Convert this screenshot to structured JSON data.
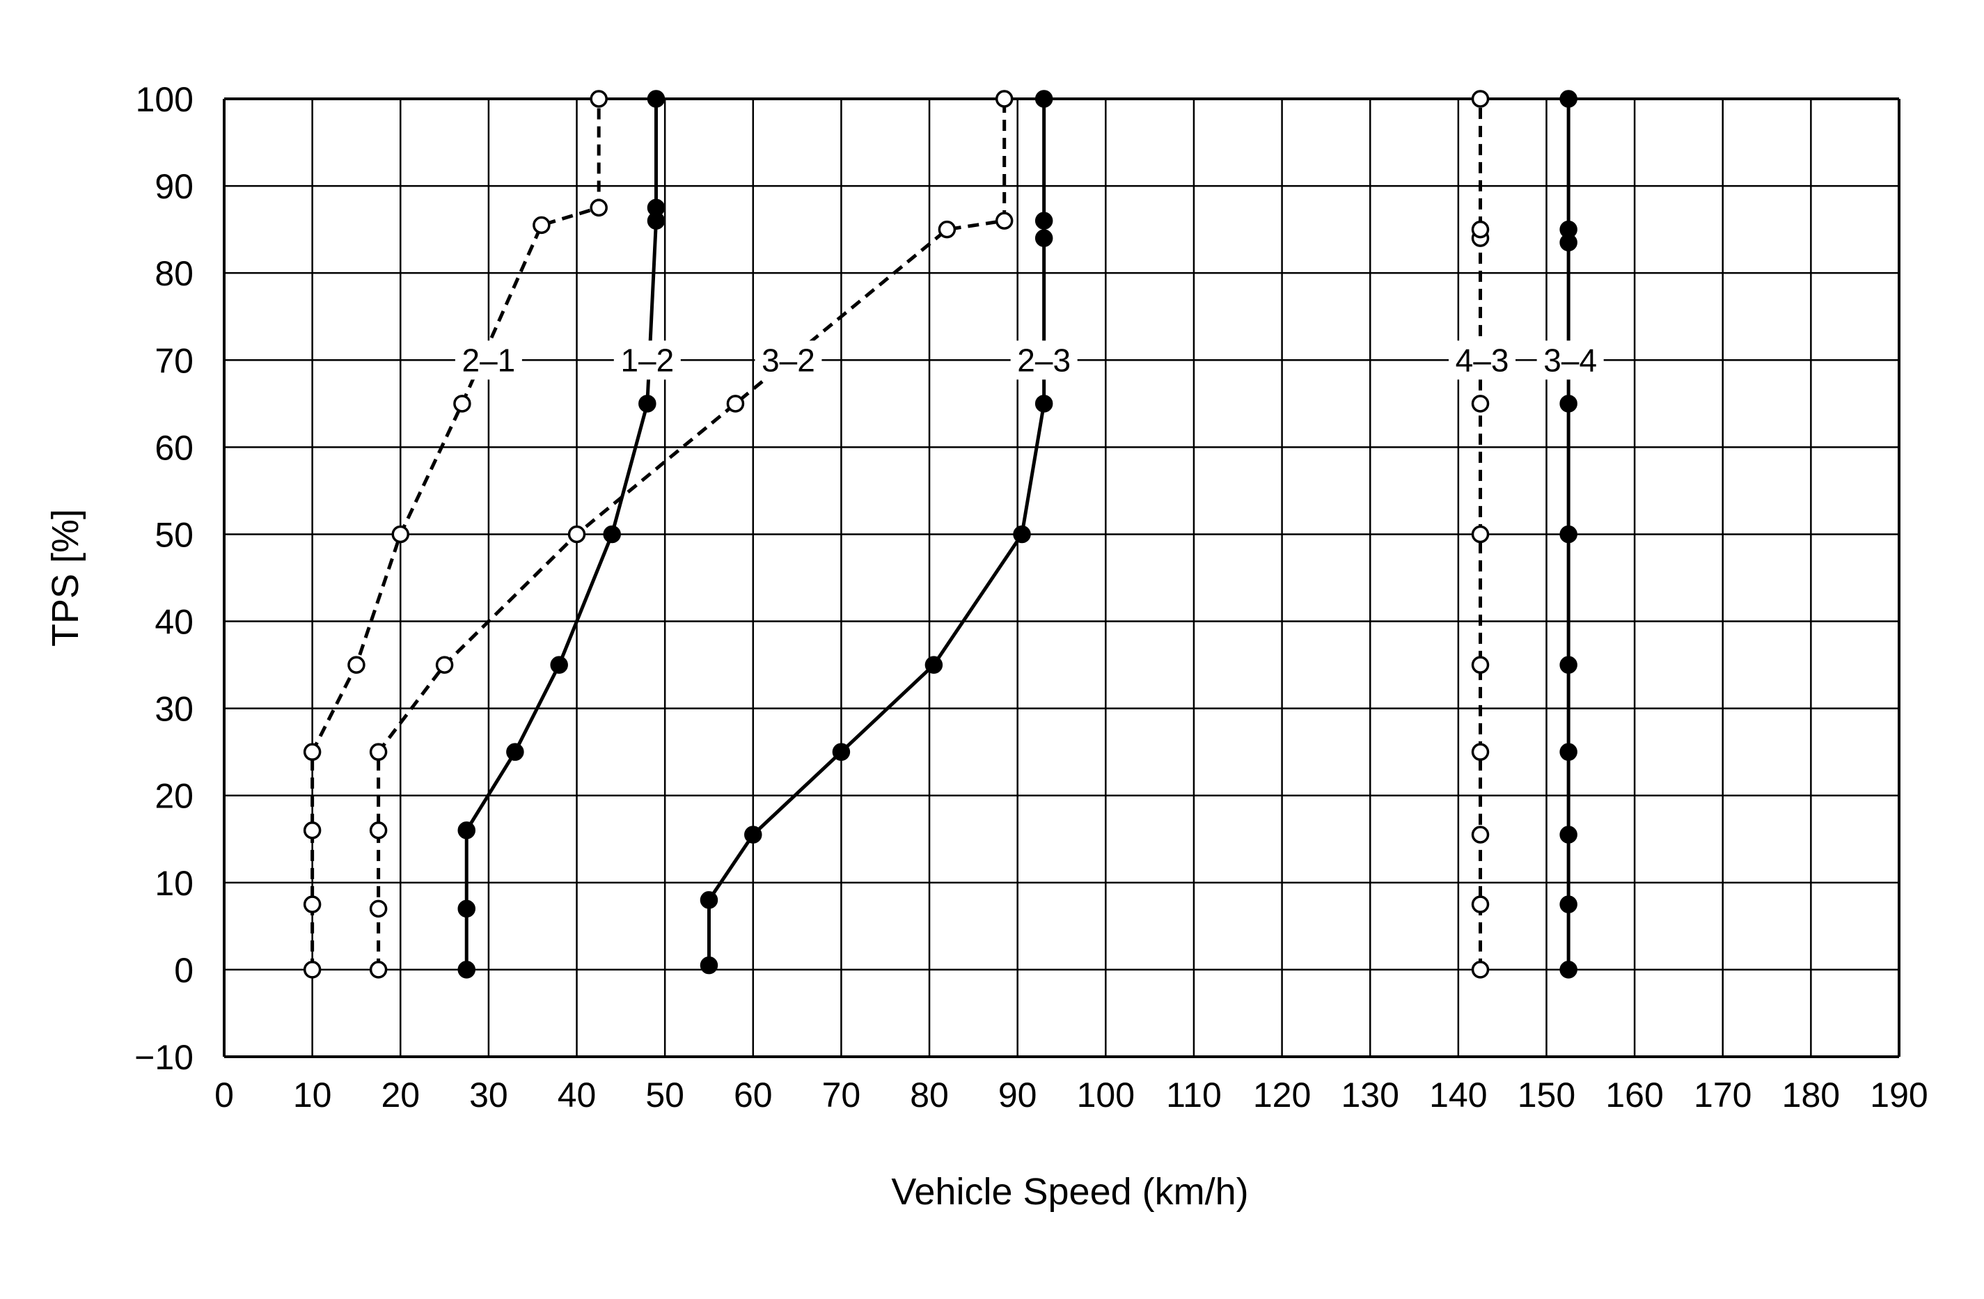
{
  "chart_data": {
    "type": "line",
    "title": "",
    "xlabel": "Vehicle Speed (km/h)",
    "ylabel": "TPS [%]",
    "xlim": [
      0,
      190
    ],
    "ylim": [
      -10,
      100
    ],
    "grid": true,
    "xticks": [
      "0",
      "10",
      "20",
      "30",
      "40",
      "50",
      "60",
      "70",
      "80",
      "90",
      "100",
      "110",
      "120",
      "130",
      "140",
      "150",
      "160",
      "170",
      "180",
      "190"
    ],
    "yticks": [
      "100",
      "90",
      "80",
      "70",
      "60",
      "50",
      "40",
      "30",
      "20",
      "10",
      "0",
      "−10"
    ],
    "series": [
      {
        "name": "2–1",
        "style": "dashed",
        "marker": "open",
        "x": [
          10,
          10,
          10,
          10,
          15,
          20,
          27,
          36,
          42.5,
          42.5
        ],
        "y": [
          0,
          7.5,
          16,
          25,
          35,
          50,
          65,
          85.5,
          87.5,
          100
        ],
        "label_x": 30
      },
      {
        "name": "3–2",
        "style": "dashed",
        "marker": "open",
        "x": [
          17.5,
          17.5,
          17.5,
          17.5,
          25,
          40,
          58,
          82,
          88.5,
          88.5
        ],
        "y": [
          0,
          7,
          16,
          25,
          35,
          50,
          65,
          85,
          86,
          100
        ],
        "label_x": 64
      },
      {
        "name": "1–2",
        "style": "solid",
        "marker": "filled",
        "x": [
          27.5,
          27.5,
          27.5,
          33,
          38,
          44,
          48,
          49,
          49,
          49
        ],
        "y": [
          0,
          7,
          16,
          25,
          35,
          50,
          65,
          86,
          87.5,
          100
        ],
        "label_x": 48
      },
      {
        "name": "2–3",
        "style": "solid",
        "marker": "filled",
        "x": [
          55,
          55,
          60,
          70,
          80.5,
          90.5,
          93,
          93,
          93,
          93
        ],
        "y": [
          0.5,
          8,
          15.5,
          25,
          35,
          50,
          65,
          84,
          86,
          100
        ],
        "label_x": 93
      },
      {
        "name": "4–3",
        "style": "dashed",
        "marker": "open",
        "x": [
          142.5,
          142.5,
          142.5,
          142.5,
          142.5,
          142.5,
          142.5,
          142.5,
          142.5,
          142.5
        ],
        "y": [
          0,
          7.5,
          15.5,
          25,
          35,
          50,
          65,
          84,
          85,
          100
        ],
        "label_x": 142.7
      },
      {
        "name": "3–4",
        "style": "solid",
        "marker": "filled",
        "x": [
          152.5,
          152.5,
          152.5,
          152.5,
          152.5,
          152.5,
          152.5,
          152.5,
          152.5,
          152.5
        ],
        "y": [
          0,
          7.5,
          15.5,
          25,
          35,
          50,
          65,
          83.5,
          85,
          100
        ],
        "label_x": 152.7
      }
    ],
    "series_label_y": 70
  }
}
